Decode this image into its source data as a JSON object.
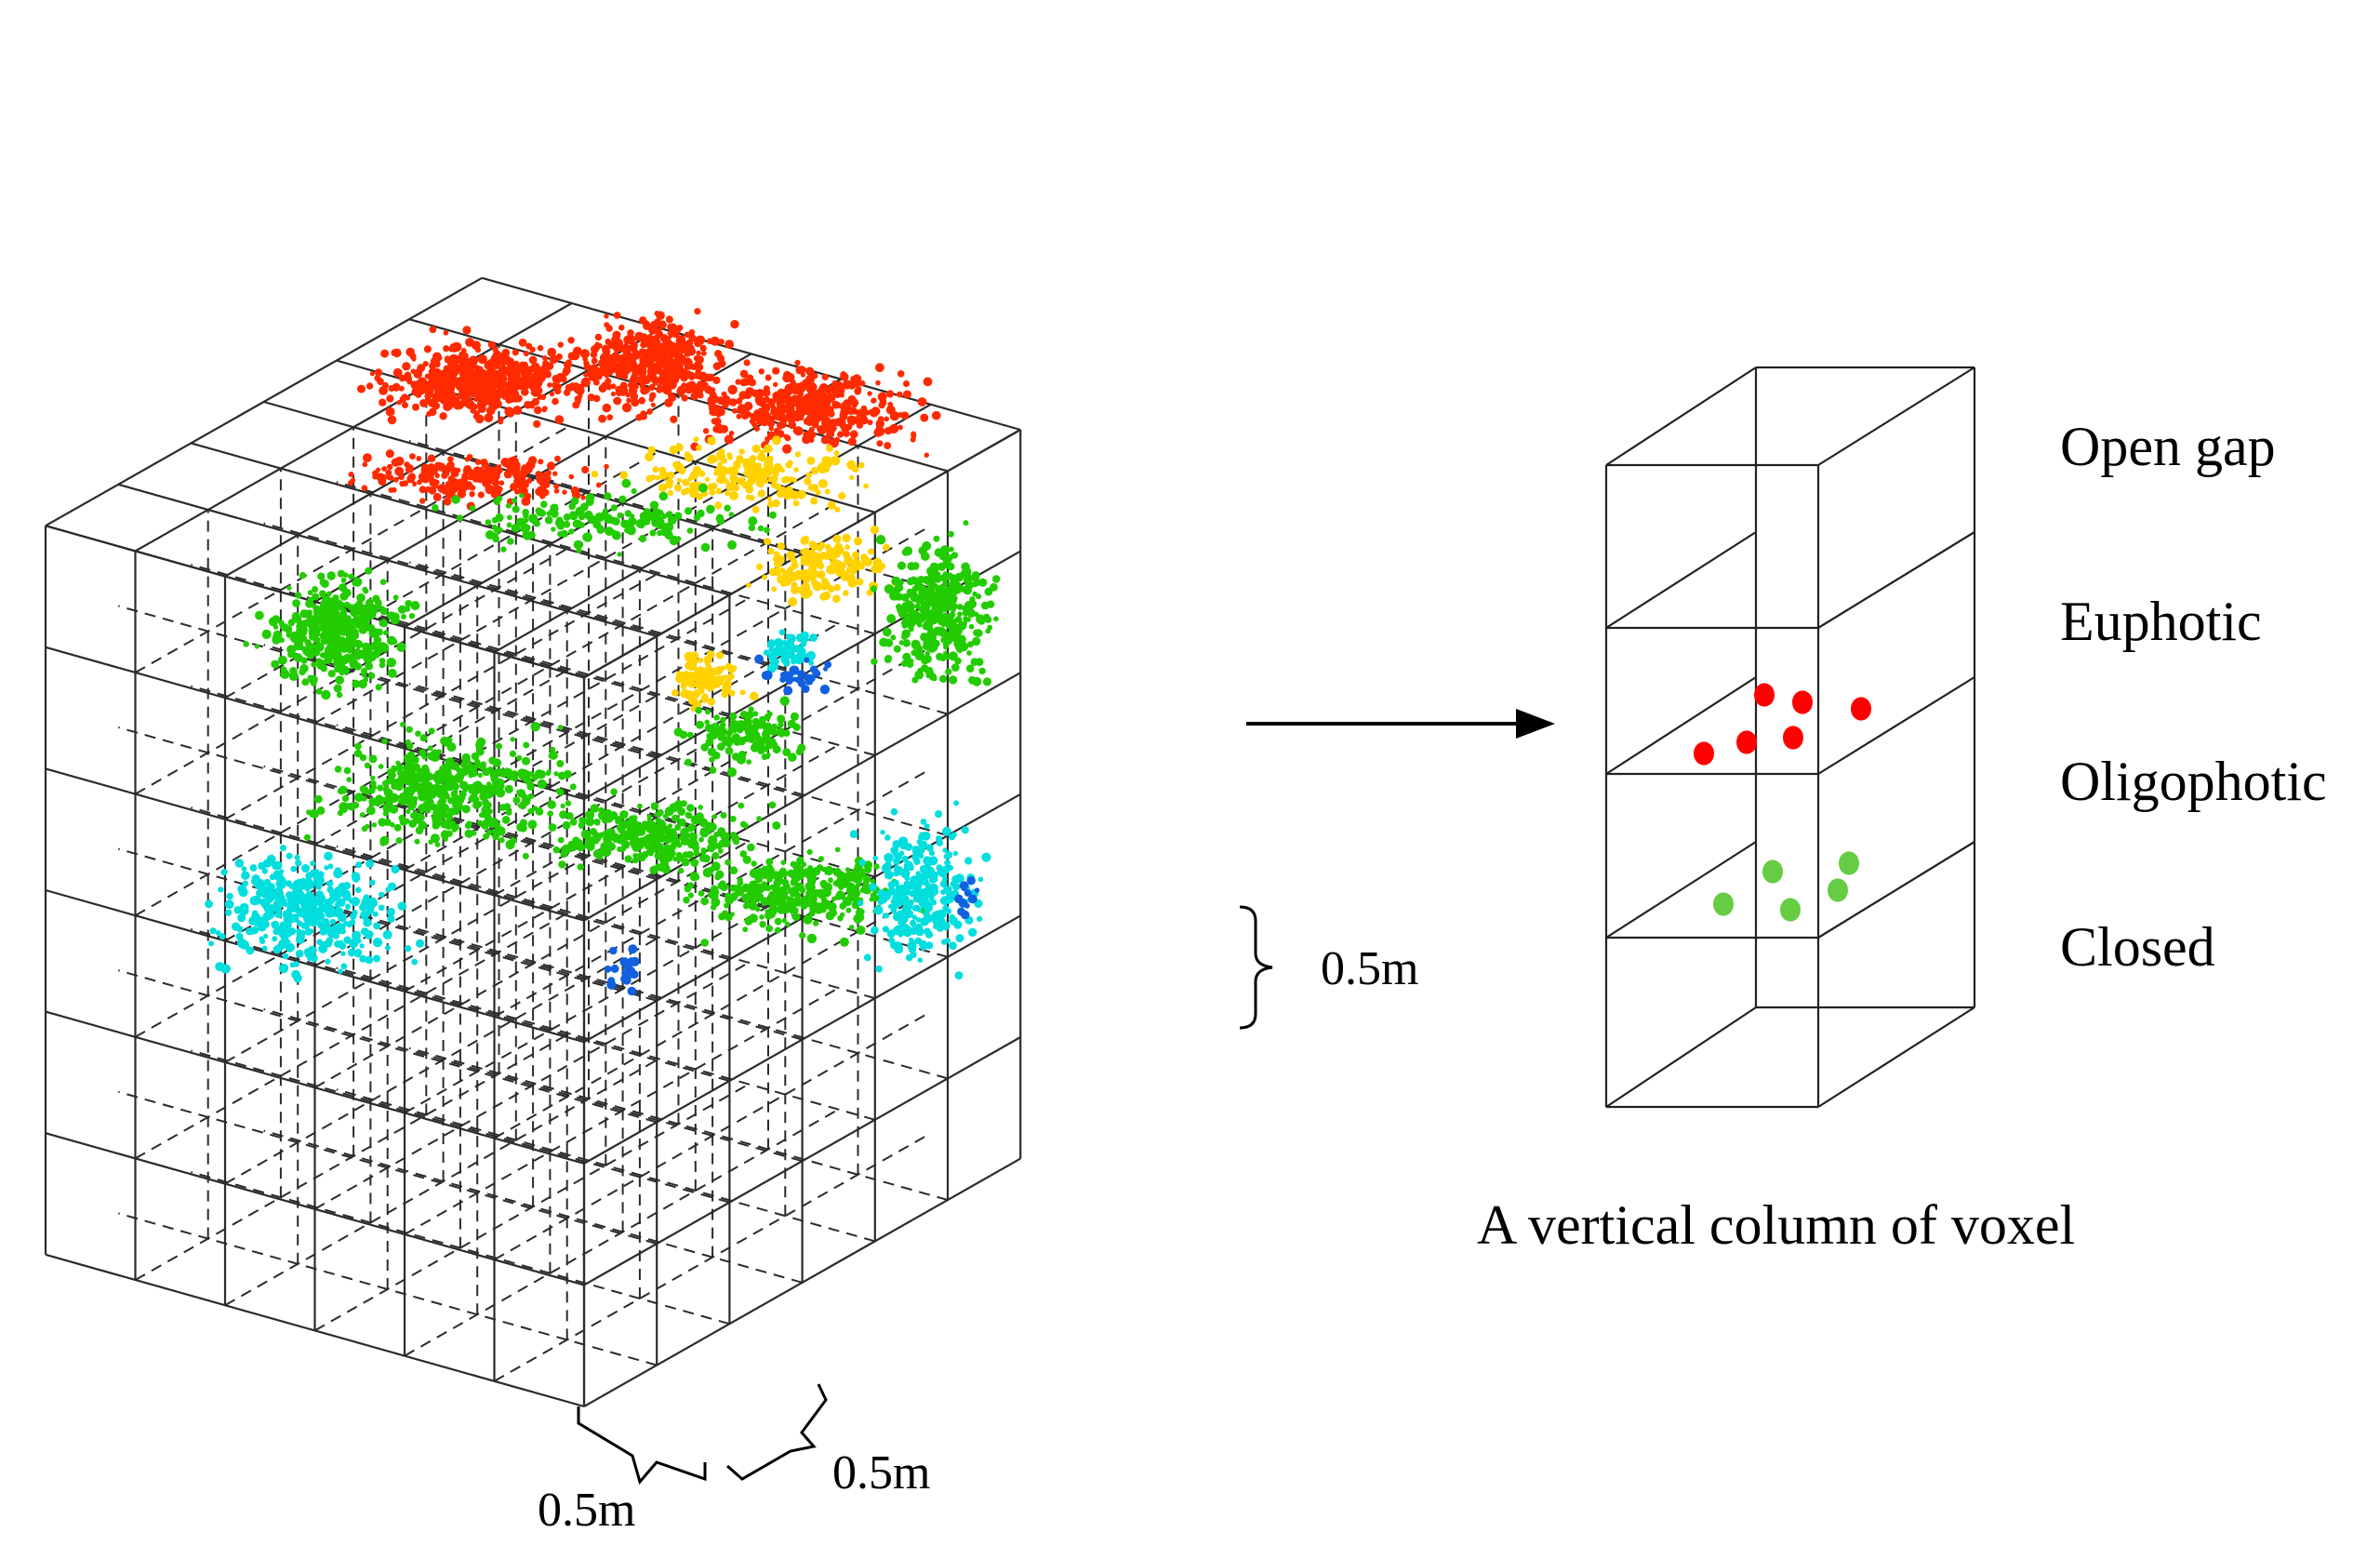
{
  "labels": {
    "dim_vertical": "0.5m",
    "dim_front": "0.5m",
    "dim_side": "0.5m",
    "column_caption": "A vertical column of voxel",
    "layers": [
      "Open gap",
      "Euphotic",
      "Oligophotic",
      "Closed"
    ]
  },
  "colors": {
    "grid_line": "#2b2b2b",
    "points_high": "#ff2a00",
    "points_mid": "#ffd200",
    "points_green": "#22cc00",
    "points_cyan": "#00dede",
    "points_blue": "#1060e0",
    "column_red_points": "#ff0000",
    "column_green_points": "#66cc44"
  },
  "icons": {
    "arrow": "right-arrow-icon"
  }
}
